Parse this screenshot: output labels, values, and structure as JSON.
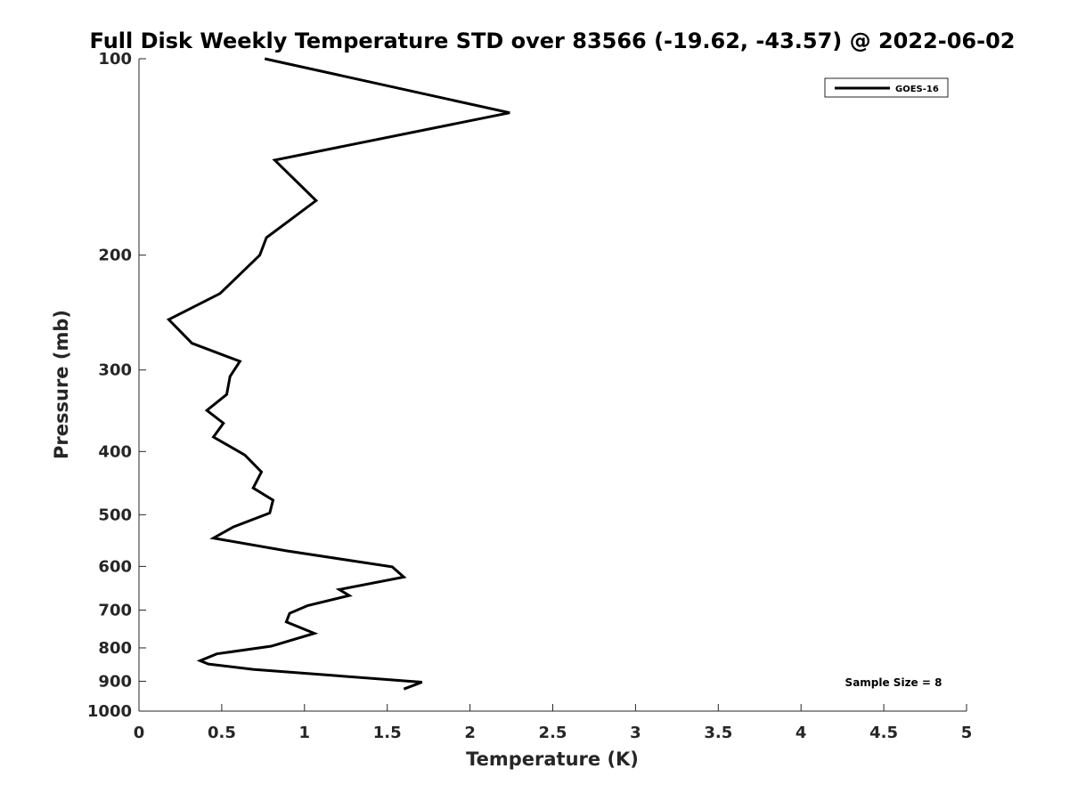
{
  "chart_data": {
    "type": "line",
    "title": "Full Disk Weekly Temperature STD over 83566 (-19.62, -43.57) @ 2022-06-02",
    "xlabel": "Temperature (K)",
    "ylabel": "Pressure (mb)",
    "xlim": [
      0,
      5
    ],
    "ylim": [
      100,
      1000
    ],
    "y_scale": "log",
    "y_reversed": true,
    "grid": false,
    "legend_position": "top-right",
    "x_ticks": [
      "0",
      "0.5",
      "1",
      "1.5",
      "2",
      "2.5",
      "3",
      "3.5",
      "4",
      "4.5",
      "5"
    ],
    "y_ticks": [
      "100",
      "200",
      "300",
      "400",
      "500",
      "600",
      "700",
      "800",
      "900",
      "1000"
    ],
    "series": [
      {
        "name": "GOES-16",
        "color": "#000000",
        "x": [
          0.76,
          2.24,
          0.82,
          1.07,
          0.77,
          0.73,
          0.49,
          0.18,
          0.32,
          0.61,
          0.55,
          0.53,
          0.41,
          0.51,
          0.45,
          0.64,
          0.74,
          0.69,
          0.81,
          0.79,
          0.57,
          0.45,
          0.89,
          1.53,
          1.6,
          1.21,
          1.27,
          1.02,
          0.91,
          0.89,
          1.06,
          0.8,
          0.47,
          0.37,
          0.42,
          0.69,
          1.71,
          1.6
        ],
        "y": [
          100,
          121,
          143,
          165,
          188,
          200,
          229,
          251,
          273,
          291,
          307,
          327,
          346,
          362,
          380,
          405,
          430,
          455,
          475,
          497,
          522,
          543,
          568,
          601,
          623,
          651,
          665,
          689,
          708,
          730,
          760,
          795,
          817,
          837,
          847,
          863,
          903,
          925
        ]
      }
    ],
    "annotations": [
      "Sample Size = 8"
    ]
  }
}
